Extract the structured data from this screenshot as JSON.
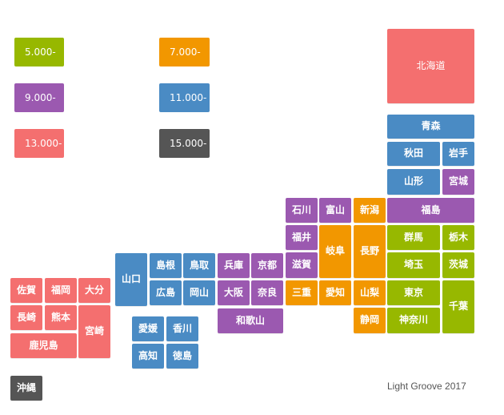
{
  "colors": {
    "c5000": "#97b800",
    "c7000": "#f29700",
    "c9000": "#9b59b0",
    "c11000": "#4a8bc4",
    "c13000": "#f46f6f",
    "c15000": "#555555"
  },
  "legend": [
    {
      "label": "5.000-",
      "color": "#97b800"
    },
    {
      "label": "7.000-",
      "color": "#f29700"
    },
    {
      "label": "9.000-",
      "color": "#9b59b0"
    },
    {
      "label": "11.000-",
      "color": "#4a8bc4"
    },
    {
      "label": "13.000-",
      "color": "#f46f6f"
    },
    {
      "label": "15.000-",
      "color": "#555555"
    }
  ],
  "prefectures": {
    "hokkaido": "北海道",
    "aomori": "青森",
    "akita": "秋田",
    "iwate": "岩手",
    "yamagata": "山形",
    "miyagi": "宮城",
    "ishikawa": "石川",
    "toyama": "富山",
    "niigata": "新潟",
    "fukushima": "福島",
    "fukui": "福井",
    "gifu": "岐阜",
    "nagano": "長野",
    "gunma": "群馬",
    "tochigi": "栃木",
    "shiga": "滋賀",
    "saitama": "埼玉",
    "ibaraki": "茨城",
    "shimane": "島根",
    "tottori": "鳥取",
    "hyogo": "兵庫",
    "kyoto": "京都",
    "yamaguchi": "山口",
    "hiroshima": "広島",
    "okayama": "岡山",
    "osaka": "大阪",
    "nara": "奈良",
    "mie": "三重",
    "aichi": "愛知",
    "yamanashi": "山梨",
    "tokyo": "東京",
    "chiba": "千葉",
    "saga": "佐賀",
    "fukuoka": "福岡",
    "oita": "大分",
    "nagasaki": "長崎",
    "kumamoto": "熊本",
    "miyazaki": "宮崎",
    "kagoshima": "鹿児島",
    "ehime": "愛媛",
    "kagawa": "香川",
    "wakayama": "和歌山",
    "shizuoka": "静岡",
    "kanagawa": "神奈川",
    "kochi": "高知",
    "tokushima": "徳島",
    "okinawa": "沖縄"
  },
  "credit": "Light Groove 2017"
}
